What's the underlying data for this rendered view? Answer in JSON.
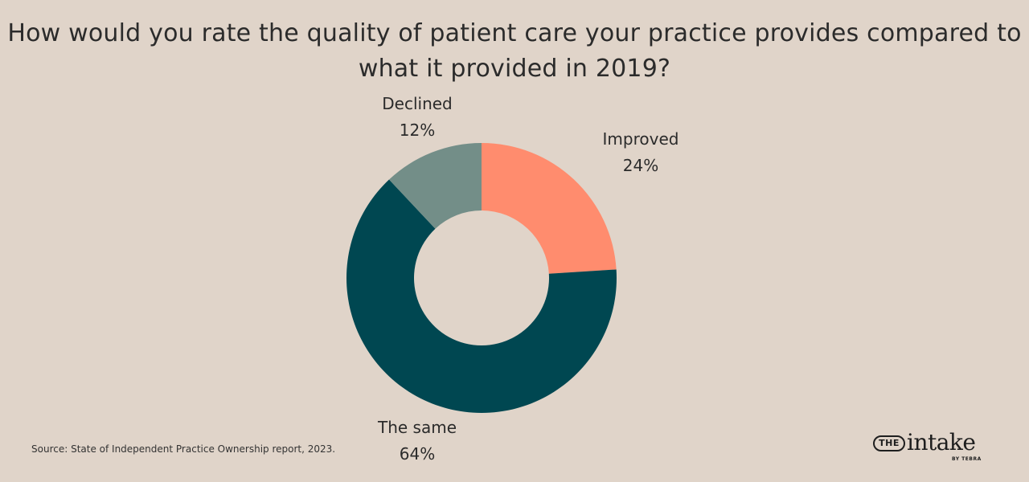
{
  "title_lines": [
    "How would you rate the quality of patient care your practice provides compared to",
    "what it provided in 2019?"
  ],
  "source": "Source: State of Independent Practice Ownership report, 2023.",
  "logo": {
    "the": "THE",
    "word": "intake",
    "sub": "BY TEBRA"
  },
  "colors": {
    "background": "#e0d4c9",
    "improved": "#ff8c6e",
    "same": "#004751",
    "declined": "#738e88"
  },
  "chart_data": {
    "type": "pie",
    "donut": true,
    "title": "How would you rate the quality of patient care your practice provides compared to what it provided in 2019?",
    "slices": [
      {
        "label": "Improved",
        "value": 24,
        "value_label": "24%",
        "color": "#ff8c6e"
      },
      {
        "label": "The same",
        "value": 64,
        "value_label": "64%",
        "color": "#004751"
      },
      {
        "label": "Declined",
        "value": 12,
        "value_label": "12%",
        "color": "#738e88"
      }
    ],
    "legend": "none"
  }
}
